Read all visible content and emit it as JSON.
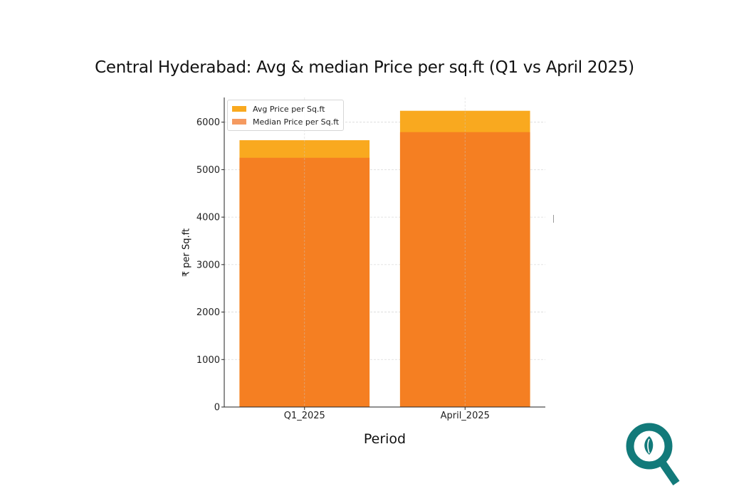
{
  "chart_data": {
    "type": "bar",
    "title": "Central Hyderabad: Avg & median Price per sq.ft (Q1 vs April 2025)",
    "xlabel": "Period",
    "ylabel": "₹ per Sq.ft",
    "categories": [
      "Q1_2025",
      "April_2025"
    ],
    "series": [
      {
        "name": "Avg Price per Sq.ft",
        "values": [
          5620,
          6240
        ],
        "color": "#f9a91f"
      },
      {
        "name": "Median Price per Sq.ft",
        "values": [
          5250,
          5790
        ],
        "color": "#f57f22"
      }
    ],
    "overlay": true,
    "yticks": [
      0,
      1000,
      2000,
      3000,
      4000,
      5000,
      6000
    ],
    "ylim": [
      0,
      6520
    ],
    "grid": true,
    "legend_position": "top-left"
  },
  "logo": {
    "name": "magnifier-logo-icon",
    "color": "#127a7a"
  }
}
